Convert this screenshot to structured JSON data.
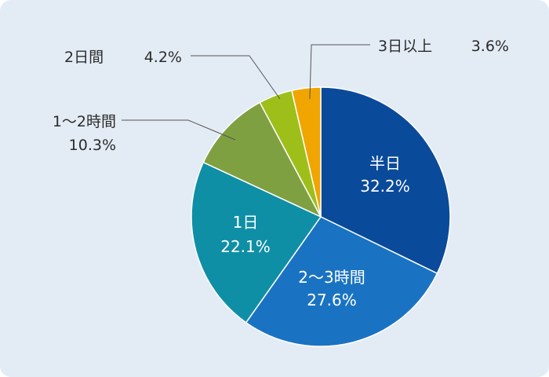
{
  "chart_data": {
    "type": "pie",
    "title": "",
    "slices": [
      {
        "label": "半日",
        "value": 32.2,
        "value_label": "32.2%",
        "color": "#0a4a9a"
      },
      {
        "label": "2〜3時間",
        "value": 27.6,
        "value_label": "27.6%",
        "color": "#1a73c2"
      },
      {
        "label": "1日",
        "value": 22.1,
        "value_label": "22.1%",
        "color": "#0f8fa6"
      },
      {
        "label": "1〜2時間",
        "value": 10.3,
        "value_label": "10.3%",
        "color": "#7fa041"
      },
      {
        "label": "2日間",
        "value": 4.2,
        "value_label": "4.2%",
        "color": "#9ebf1a"
      },
      {
        "label": "3日以上",
        "value": 3.6,
        "value_label": "3.6%",
        "color": "#f0a500"
      }
    ],
    "start": "12 o'clock",
    "direction": "clockwise",
    "legend": "none"
  }
}
